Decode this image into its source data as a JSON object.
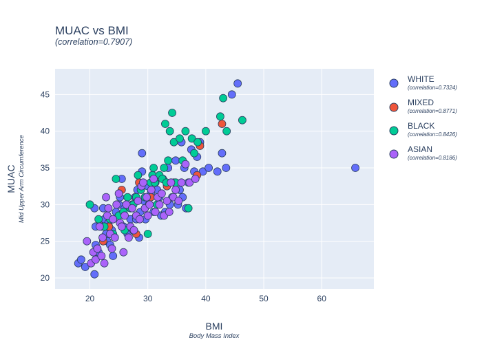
{
  "chart_data": {
    "type": "scatter",
    "title": "MUAC vs BMI",
    "subtitle": "(correlation=0.7907)",
    "xlabel": "BMI",
    "xlabel_sub": "Body Mass Index",
    "ylabel": "MUAC",
    "ylabel_sub": "Mid Upper Arm Circumference",
    "xlim": [
      14,
      69
    ],
    "ylim": [
      18.5,
      48.5
    ],
    "x_ticks": [
      20,
      30,
      40,
      50,
      60
    ],
    "y_ticks": [
      20,
      25,
      30,
      35,
      40,
      45
    ],
    "grid": true,
    "legend_position": "right",
    "colors": {
      "plot_bg": "#e5ecf6",
      "grid": "#ffffff",
      "marker_border": "#2a3f5f"
    },
    "series": [
      {
        "name": "WHITE",
        "subtitle": "(correlation=0.7324)",
        "color": "#636efa",
        "points": [
          [
            18,
            22
          ],
          [
            18.5,
            22.5
          ],
          [
            19.2,
            21.5
          ],
          [
            20.8,
            29.5
          ],
          [
            21,
            27
          ],
          [
            21,
            24.5
          ],
          [
            20.8,
            20.5
          ],
          [
            21.5,
            23.5
          ],
          [
            22,
            27
          ],
          [
            22.3,
            29.5
          ],
          [
            22.5,
            28
          ],
          [
            22.8,
            26
          ],
          [
            23,
            25
          ],
          [
            23.2,
            27.5
          ],
          [
            23.5,
            24.5
          ],
          [
            23.8,
            26.5
          ],
          [
            24,
            23
          ],
          [
            24.3,
            25.5
          ],
          [
            24.5,
            29
          ],
          [
            25,
            30
          ],
          [
            25.2,
            31
          ],
          [
            25.5,
            33.5
          ],
          [
            25.8,
            27
          ],
          [
            26,
            29.5
          ],
          [
            26.5,
            26
          ],
          [
            27,
            28
          ],
          [
            27.3,
            30
          ],
          [
            27.5,
            26.5
          ],
          [
            27.8,
            31
          ],
          [
            28,
            28
          ],
          [
            28.2,
            32
          ],
          [
            28.5,
            25.5
          ],
          [
            28.7,
            29
          ],
          [
            29,
            37
          ],
          [
            29,
            34.5
          ],
          [
            29.3,
            30.5
          ],
          [
            29.6,
            28
          ],
          [
            30,
            32.5
          ],
          [
            30.2,
            30
          ],
          [
            30.5,
            31.5
          ],
          [
            30.8,
            34
          ],
          [
            31,
            29
          ],
          [
            31.3,
            33
          ],
          [
            31.6,
            32
          ],
          [
            32,
            31
          ],
          [
            32.3,
            28.5
          ],
          [
            32.6,
            33.5
          ],
          [
            33,
            29
          ],
          [
            33.5,
            35
          ],
          [
            33.8,
            30
          ],
          [
            34.2,
            31
          ],
          [
            34.5,
            33
          ],
          [
            34.8,
            36
          ],
          [
            35.2,
            30
          ],
          [
            35.5,
            32
          ],
          [
            35.8,
            38.5
          ],
          [
            36,
            31
          ],
          [
            36.3,
            35
          ],
          [
            36.6,
            29.5
          ],
          [
            37,
            33
          ],
          [
            37.5,
            37.5
          ],
          [
            38,
            34.5
          ],
          [
            38.5,
            36.5
          ],
          [
            39,
            38.5
          ],
          [
            39.5,
            34.5
          ],
          [
            40.5,
            35
          ],
          [
            42,
            34.5
          ],
          [
            42.8,
            37
          ],
          [
            43.5,
            35
          ],
          [
            44.5,
            45
          ],
          [
            45.5,
            46.5
          ],
          [
            65.8,
            35
          ]
        ]
      },
      {
        "name": "MIXED",
        "subtitle": "(correlation=0.8771)",
        "color": "#ef553b",
        "points": [
          [
            22.3,
            25
          ],
          [
            23.3,
            27
          ],
          [
            25.5,
            32
          ],
          [
            28,
            26
          ],
          [
            28.5,
            33
          ],
          [
            30.5,
            31
          ],
          [
            33.3,
            32.5
          ],
          [
            38.5,
            34
          ],
          [
            39,
            38
          ],
          [
            42.8,
            41
          ]
        ]
      },
      {
        "name": "BLACK",
        "subtitle": "(correlation=0.8426)",
        "color": "#00cc96",
        "points": [
          [
            20,
            30
          ],
          [
            21.5,
            28
          ],
          [
            22.5,
            27
          ],
          [
            23.5,
            28
          ],
          [
            24,
            26
          ],
          [
            24.5,
            33.5
          ],
          [
            25,
            28.5
          ],
          [
            25.8,
            29
          ],
          [
            26,
            26.5
          ],
          [
            26.5,
            31
          ],
          [
            27,
            29.5
          ],
          [
            27.5,
            30
          ],
          [
            28,
            31
          ],
          [
            28.3,
            34
          ],
          [
            28.8,
            32
          ],
          [
            29.5,
            31
          ],
          [
            30,
            26
          ],
          [
            30.5,
            33
          ],
          [
            30.8,
            34
          ],
          [
            31,
            35
          ],
          [
            31.2,
            33
          ],
          [
            31.6,
            30
          ],
          [
            32,
            34
          ],
          [
            32.5,
            33.5
          ],
          [
            32.8,
            35
          ],
          [
            33,
            41
          ],
          [
            33.2,
            33
          ],
          [
            33.5,
            36
          ],
          [
            33.8,
            40
          ],
          [
            34.2,
            42.5
          ],
          [
            34.5,
            38.5
          ],
          [
            34.8,
            33
          ],
          [
            35.5,
            39
          ],
          [
            36,
            36
          ],
          [
            36.5,
            40
          ],
          [
            37,
            29.5
          ],
          [
            37.6,
            39
          ],
          [
            38,
            37
          ],
          [
            38.6,
            38.5
          ],
          [
            40,
            40
          ],
          [
            42.5,
            42
          ],
          [
            43,
            44.5
          ],
          [
            43.6,
            40
          ],
          [
            46.3,
            41.5
          ]
        ]
      },
      {
        "name": "ASIAN",
        "subtitle": "(correlation=0.8186)",
        "color": "#ab63fa",
        "points": [
          [
            19.5,
            25
          ],
          [
            20.2,
            22
          ],
          [
            20.6,
            23.5
          ],
          [
            21,
            22.5
          ],
          [
            21.3,
            24
          ],
          [
            21.7,
            27
          ],
          [
            22,
            23
          ],
          [
            22.2,
            25.5
          ],
          [
            22.5,
            22
          ],
          [
            22.8,
            31
          ],
          [
            23,
            28.5
          ],
          [
            23.2,
            29.5
          ],
          [
            23.5,
            26
          ],
          [
            23.8,
            24
          ],
          [
            24,
            28
          ],
          [
            24.3,
            25.5
          ],
          [
            24.6,
            30
          ],
          [
            25,
            31.5
          ],
          [
            25.2,
            27.5
          ],
          [
            25.5,
            27
          ],
          [
            25.8,
            23.5
          ],
          [
            26,
            28.5
          ],
          [
            26.3,
            30
          ],
          [
            26.7,
            25.5
          ],
          [
            27,
            27
          ],
          [
            27.3,
            29.5
          ],
          [
            27.6,
            26.5
          ],
          [
            28,
            28.5
          ],
          [
            28.3,
            30.5
          ],
          [
            28.6,
            28
          ],
          [
            28.9,
            32.5
          ],
          [
            29.2,
            33
          ],
          [
            29.5,
            29.5
          ],
          [
            29.8,
            31
          ],
          [
            30,
            28.5
          ],
          [
            30.3,
            30
          ],
          [
            30.6,
            32
          ],
          [
            31,
            33.5
          ],
          [
            31.3,
            29
          ],
          [
            31.7,
            31
          ],
          [
            32,
            30
          ],
          [
            32.4,
            31.5
          ],
          [
            32.8,
            28.5
          ],
          [
            33.3,
            30.5
          ],
          [
            33.7,
            29
          ],
          [
            34,
            33
          ],
          [
            34.4,
            31
          ],
          [
            34.8,
            32
          ],
          [
            35.3,
            30.5
          ],
          [
            35.8,
            33
          ],
          [
            36.5,
            35.5
          ],
          [
            37.2,
            33
          ],
          [
            38.2,
            33.5
          ]
        ]
      }
    ]
  }
}
